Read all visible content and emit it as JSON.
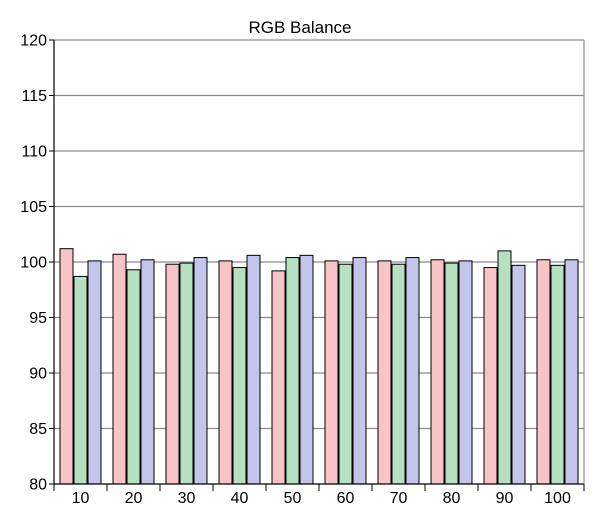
{
  "chart_data": {
    "type": "bar",
    "title": "RGB Balance",
    "xlabel": "",
    "ylabel": "",
    "categories": [
      "10",
      "20",
      "30",
      "40",
      "50",
      "60",
      "70",
      "80",
      "90",
      "100"
    ],
    "ylim": [
      80,
      120
    ],
    "yticks": [
      80,
      85,
      90,
      95,
      100,
      105,
      110,
      115,
      120
    ],
    "grid": true,
    "legend": "none",
    "series": [
      {
        "color": "#f9c4c6",
        "values": [
          101.2,
          100.7,
          99.8,
          100.1,
          99.2,
          100.1,
          100.1,
          100.2,
          99.5,
          100.2
        ]
      },
      {
        "color": "#b6e1c1",
        "values": [
          98.7,
          99.3,
          99.9,
          99.5,
          100.4,
          99.8,
          99.8,
          99.9,
          101.0,
          99.7
        ]
      },
      {
        "color": "#c3c5ea",
        "values": [
          100.1,
          100.2,
          100.4,
          100.6,
          100.6,
          100.4,
          100.4,
          100.1,
          99.7,
          100.2
        ]
      }
    ]
  }
}
